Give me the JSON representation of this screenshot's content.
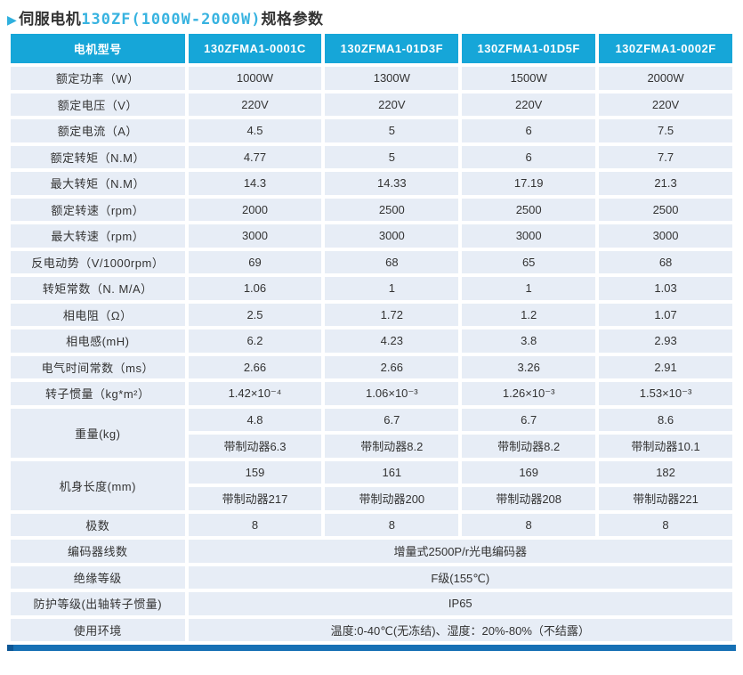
{
  "title": {
    "arrow": "▶",
    "prefix": "伺服电机",
    "highlight": "130ZF(1000W-2000W)",
    "suffix": "规格参数"
  },
  "colors": {
    "accent": "#16a6d8",
    "header_bg": "#16a6d8",
    "cell_bg": "#e7edf6",
    "title_highlight": "#38b3e0",
    "bottom_bar": "#1670b4",
    "text": "#333333"
  },
  "table": {
    "header": [
      "电机型号",
      "130ZFMA1-0001C",
      "130ZFMA1-01D3F",
      "130ZFMA1-01D5F",
      "130ZFMA1-0002F"
    ],
    "rows": [
      {
        "label": "额定功率（W）",
        "values": [
          "1000W",
          "1300W",
          "1500W",
          "2000W"
        ]
      },
      {
        "label": "额定电压（V）",
        "values": [
          "220V",
          "220V",
          "220V",
          "220V"
        ]
      },
      {
        "label": "额定电流（A）",
        "values": [
          "4.5",
          "5",
          "6",
          "7.5"
        ]
      },
      {
        "label": "额定转矩（N.M）",
        "values": [
          "4.77",
          "5",
          "6",
          "7.7"
        ]
      },
      {
        "label": "最大转矩（N.M）",
        "values": [
          "14.3",
          "14.33",
          "17.19",
          "21.3"
        ]
      },
      {
        "label": "额定转速（rpm）",
        "values": [
          "2000",
          "2500",
          "2500",
          "2500"
        ]
      },
      {
        "label": "最大转速（rpm）",
        "values": [
          "3000",
          "3000",
          "3000",
          "3000"
        ]
      },
      {
        "label": "反电动势（V/1000rpm）",
        "values": [
          "69",
          "68",
          "65",
          "68"
        ]
      },
      {
        "label": "转矩常数（N. M/A）",
        "values": [
          "1.06",
          "1",
          "1",
          "1.03"
        ]
      },
      {
        "label": "相电阻（Ω）",
        "values": [
          "2.5",
          "1.72",
          "1.2",
          "1.07"
        ]
      },
      {
        "label": "相电感(mH)",
        "values": [
          "6.2",
          "4.23",
          "3.8",
          "2.93"
        ]
      },
      {
        "label": "电气时间常数（ms）",
        "values": [
          "2.66",
          "2.66",
          "3.26",
          "2.91"
        ]
      },
      {
        "label": "转子惯量（kg*m²）",
        "values": [
          "1.42×10⁻⁴",
          "1.06×10⁻³",
          "1.26×10⁻³",
          "1.53×10⁻³"
        ]
      }
    ],
    "weight_group": {
      "label": "重量(kg)",
      "rows": [
        [
          "4.8",
          "6.7",
          "6.7",
          "8.6"
        ],
        [
          "带制动器6.3",
          "带制动器8.2",
          "带制动器8.2",
          "带制动器10.1"
        ]
      ]
    },
    "length_group": {
      "label": "机身长度(mm)",
      "rows": [
        [
          "159",
          "161",
          "169",
          "182"
        ],
        [
          "带制动器217",
          "带制动器200",
          "带制动器208",
          "带制动器221"
        ]
      ]
    },
    "poles_row": {
      "label": "极数",
      "values": [
        "8",
        "8",
        "8",
        "8"
      ]
    },
    "span_rows": [
      {
        "label": "编码器线数",
        "value": "增量式2500P/r光电编码器"
      },
      {
        "label": "绝缘等级",
        "value": "F级(155℃)"
      },
      {
        "label": "防护等级(出轴转子惯量)",
        "value": "IP65"
      },
      {
        "label": "使用环境",
        "value": "温度:0-40℃(无冻结)、湿度：20%-80%（不结露）"
      }
    ]
  }
}
